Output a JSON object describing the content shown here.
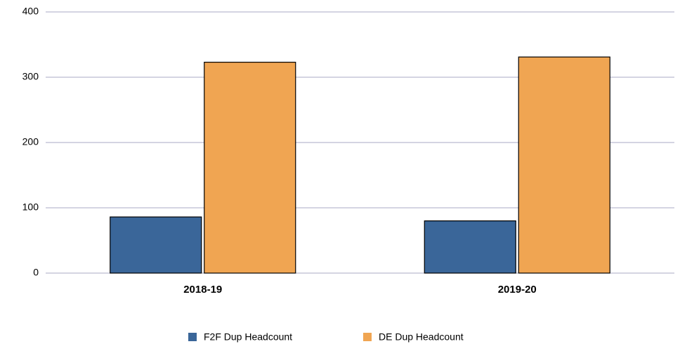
{
  "chart_data": {
    "type": "bar",
    "categories": [
      "2018-19",
      "2019-20"
    ],
    "series": [
      {
        "name": "F2F Dup Headcount",
        "color": "#3a6699",
        "values": [
          86,
          80
        ]
      },
      {
        "name": "DE Dup Headcount",
        "color": "#f0a552",
        "values": [
          323,
          331
        ]
      }
    ],
    "ylim": [
      0,
      400
    ],
    "yticks": [
      0,
      100,
      200,
      300,
      400
    ],
    "grid": true,
    "legend": "bottom"
  }
}
